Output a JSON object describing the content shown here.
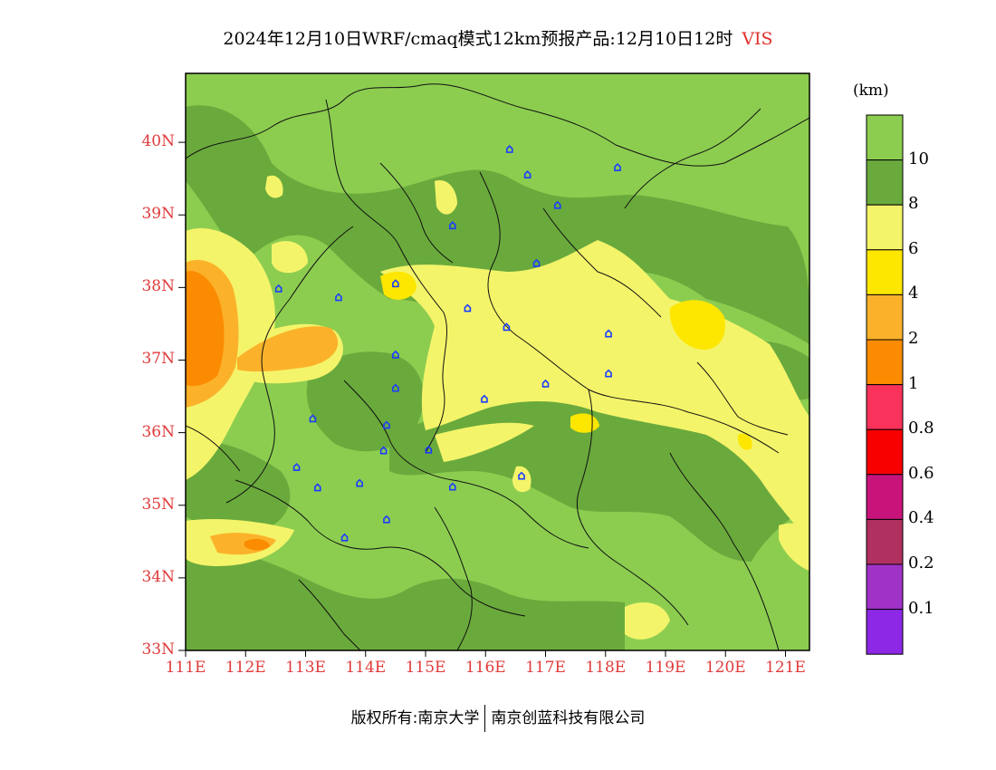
{
  "title": {
    "text": "2024年12月10日WRF/cmaq模式12km预报产品:12月10日12时",
    "variable": "VIS"
  },
  "map": {
    "lon_range": [
      111,
      121.4
    ],
    "lat_range": [
      33,
      40.95
    ],
    "lat_ticks": [
      "33N",
      "34N",
      "35N",
      "36N",
      "37N",
      "38N",
      "39N",
      "40N"
    ],
    "lon_ticks": [
      "111E",
      "112E",
      "113E",
      "114E",
      "115E",
      "116E",
      "117E",
      "118E",
      "119E",
      "120E",
      "121E"
    ],
    "background_color": "#8ccd50"
  },
  "colorbar": {
    "unit": "(km)",
    "labels": [
      "10",
      "8",
      "6",
      "4",
      "2",
      "1",
      "0.8",
      "0.6",
      "0.4",
      "0.2",
      "0.1"
    ],
    "colors": [
      "#8ccd50",
      "#6aaa3c",
      "#f4f46a",
      "#fde600",
      "#fbb22a",
      "#fb8b00",
      "#f8325a",
      "#f80000",
      "#c8147a",
      "#b03060",
      "#a032c8",
      "#8c28e6"
    ]
  },
  "cities": [
    {
      "name": "station",
      "lon": 116.4,
      "lat": 39.9
    },
    {
      "name": "station",
      "lon": 116.7,
      "lat": 39.55
    },
    {
      "name": "station",
      "lon": 118.2,
      "lat": 39.65
    },
    {
      "name": "station",
      "lon": 117.2,
      "lat": 39.13
    },
    {
      "name": "station",
      "lon": 115.45,
      "lat": 38.85
    },
    {
      "name": "station",
      "lon": 116.85,
      "lat": 38.33
    },
    {
      "name": "station",
      "lon": 112.55,
      "lat": 37.98
    },
    {
      "name": "station",
      "lon": 113.55,
      "lat": 37.86
    },
    {
      "name": "station",
      "lon": 114.5,
      "lat": 38.05
    },
    {
      "name": "station",
      "lon": 115.7,
      "lat": 37.71
    },
    {
      "name": "station",
      "lon": 116.35,
      "lat": 37.45
    },
    {
      "name": "station",
      "lon": 118.05,
      "lat": 37.36
    },
    {
      "name": "station",
      "lon": 114.5,
      "lat": 37.07
    },
    {
      "name": "station",
      "lon": 118.05,
      "lat": 36.81
    },
    {
      "name": "station",
      "lon": 117.0,
      "lat": 36.67
    },
    {
      "name": "station",
      "lon": 114.5,
      "lat": 36.61
    },
    {
      "name": "station",
      "lon": 115.98,
      "lat": 36.46
    },
    {
      "name": "station",
      "lon": 113.12,
      "lat": 36.19
    },
    {
      "name": "station",
      "lon": 114.35,
      "lat": 36.1
    },
    {
      "name": "station",
      "lon": 114.3,
      "lat": 35.75
    },
    {
      "name": "station",
      "lon": 115.05,
      "lat": 35.76
    },
    {
      "name": "station",
      "lon": 112.85,
      "lat": 35.52
    },
    {
      "name": "station",
      "lon": 116.6,
      "lat": 35.4
    },
    {
      "name": "station",
      "lon": 113.2,
      "lat": 35.24
    },
    {
      "name": "station",
      "lon": 113.9,
      "lat": 35.3
    },
    {
      "name": "station",
      "lon": 115.45,
      "lat": 35.25
    },
    {
      "name": "station",
      "lon": 114.35,
      "lat": 34.8
    },
    {
      "name": "station",
      "lon": 113.65,
      "lat": 34.55
    }
  ],
  "footer": {
    "left": "版权所有:南京大学",
    "right": "南京创蓝科技有限公司"
  }
}
